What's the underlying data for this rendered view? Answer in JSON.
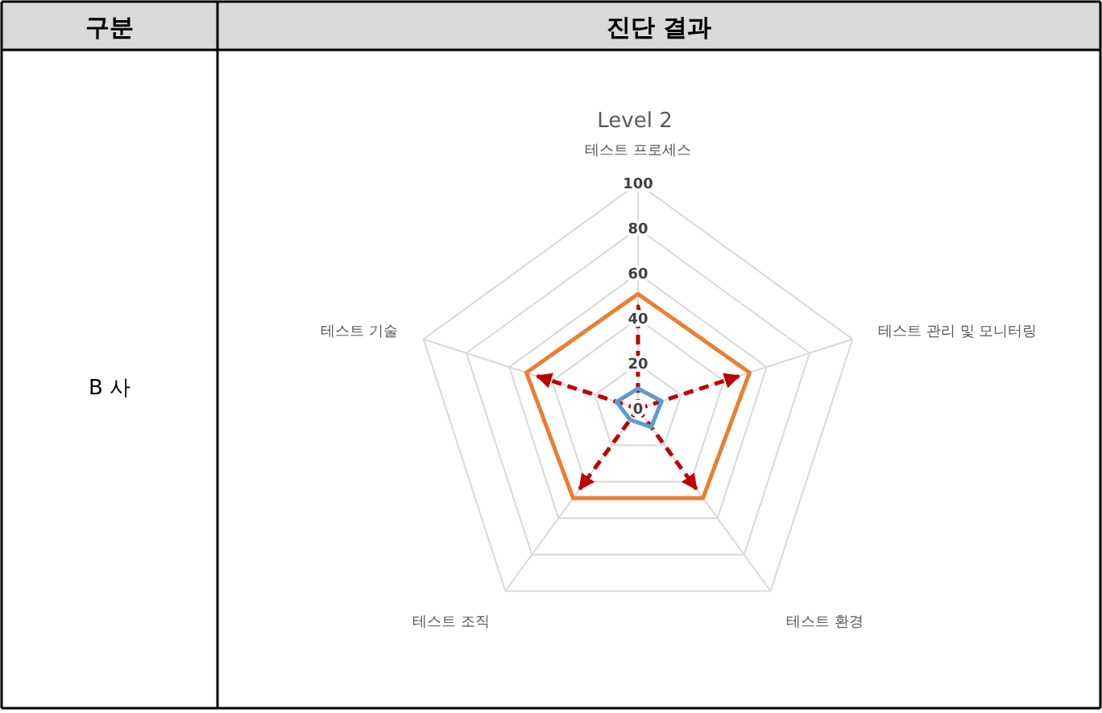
{
  "chart_data": {
    "type": "radar",
    "title": "Level 2",
    "categories": [
      "테스트 프로세스",
      "테스트 관리 및 모니터링",
      "테스트 환경",
      "테스트 조직",
      "테스트 기술"
    ],
    "series": [
      {
        "color": "#ed7d31",
        "values": [
          51,
          52,
          49,
          49,
          52
        ]
      },
      {
        "color": "#5b9bd5",
        "values": [
          9,
          11,
          10,
          6,
          10
        ]
      }
    ],
    "ylim": [
      0,
      100
    ],
    "yticks": [
      0,
      20,
      40,
      60,
      80,
      100
    ],
    "grid": true,
    "annotations": [
      "구분",
      "진단 결과",
      "B 사"
    ]
  }
}
